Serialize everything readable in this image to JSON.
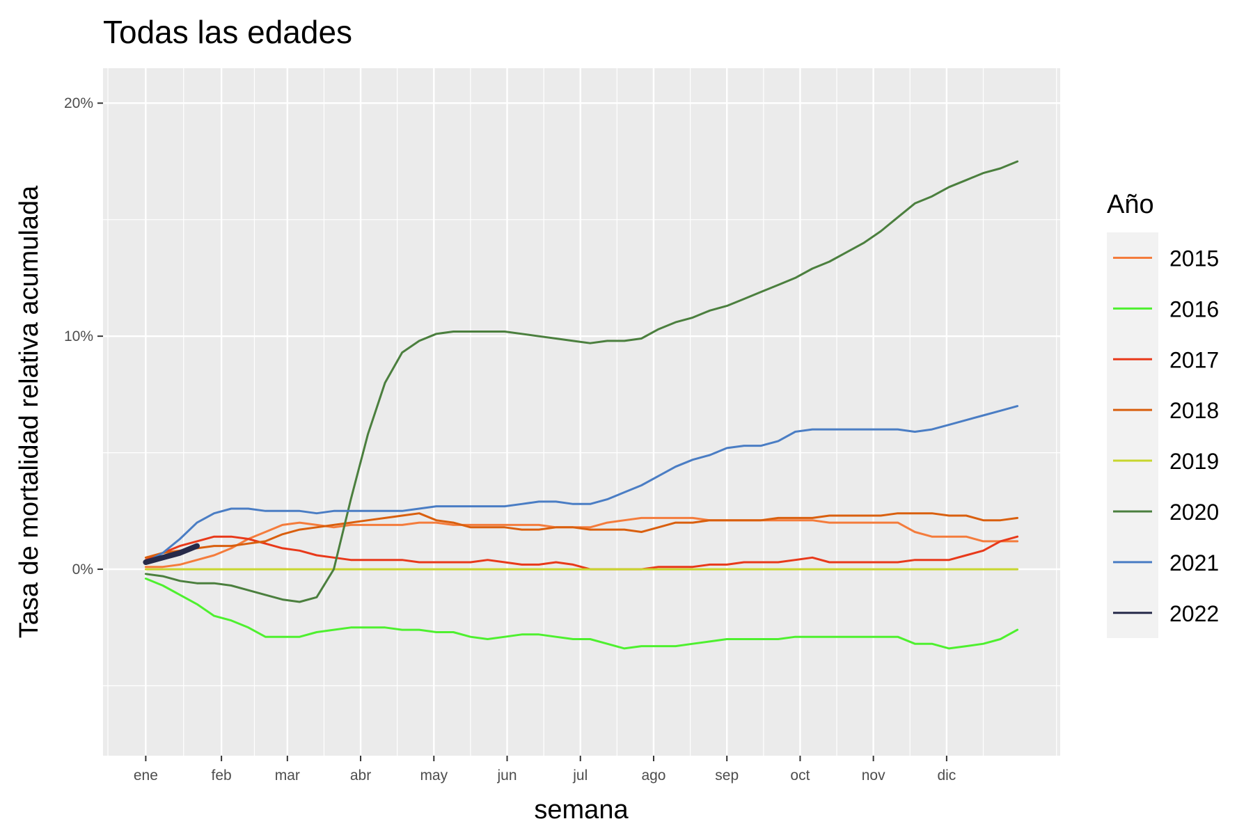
{
  "chart_data": {
    "type": "line",
    "title": "Todas las edades",
    "xlabel": "semana",
    "ylabel": "Tasa de mortalidad relativa acumulada",
    "x_unit": "week",
    "x_tick_labels": [
      "ene",
      "feb",
      "mar",
      "abr",
      "may",
      "jun",
      "jul",
      "ago",
      "sep",
      "oct",
      "nov",
      "dic"
    ],
    "x_tick_weeks": [
      1,
      5.429,
      9.286,
      13.571,
      17.857,
      22.143,
      26.429,
      30.714,
      35,
      39.286,
      43.571,
      47.857
    ],
    "xlim": [
      -1.5,
      54.5
    ],
    "ylim": [
      -0.08,
      0.215
    ],
    "y_ticks": [
      0,
      0.1,
      0.2
    ],
    "y_tick_labels": [
      "0%",
      "10%",
      "20%"
    ],
    "grid": true,
    "legend_title": "Año",
    "legend_position": "right",
    "series": [
      {
        "name": "2015",
        "color": "#f47c3c",
        "width": 3,
        "x": [
          1,
          2,
          3,
          4,
          5,
          6,
          7,
          8,
          9,
          10,
          11,
          12,
          13,
          14,
          15,
          16,
          17,
          18,
          19,
          20,
          21,
          22,
          23,
          24,
          25,
          26,
          27,
          28,
          29,
          30,
          31,
          32,
          33,
          34,
          35,
          36,
          37,
          38,
          39,
          40,
          41,
          42,
          43,
          44,
          45,
          46,
          47,
          48,
          49,
          50,
          51,
          52
        ],
        "y": [
          0.001,
          0.001,
          0.002,
          0.004,
          0.006,
          0.009,
          0.013,
          0.016,
          0.019,
          0.02,
          0.019,
          0.018,
          0.019,
          0.019,
          0.019,
          0.019,
          0.02,
          0.02,
          0.019,
          0.019,
          0.019,
          0.019,
          0.019,
          0.019,
          0.018,
          0.018,
          0.018,
          0.02,
          0.021,
          0.022,
          0.022,
          0.022,
          0.022,
          0.021,
          0.021,
          0.021,
          0.021,
          0.021,
          0.021,
          0.021,
          0.02,
          0.02,
          0.02,
          0.02,
          0.02,
          0.016,
          0.014,
          0.014,
          0.014,
          0.012,
          0.012,
          0.012
        ]
      },
      {
        "name": "2016",
        "color": "#4ef02f",
        "width": 3,
        "x": [
          1,
          2,
          3,
          4,
          5,
          6,
          7,
          8,
          9,
          10,
          11,
          12,
          13,
          14,
          15,
          16,
          17,
          18,
          19,
          20,
          21,
          22,
          23,
          24,
          25,
          26,
          27,
          28,
          29,
          30,
          31,
          32,
          33,
          34,
          35,
          36,
          37,
          38,
          39,
          40,
          41,
          42,
          43,
          44,
          45,
          46,
          47,
          48,
          49,
          50,
          51,
          52
        ],
        "y": [
          -0.004,
          -0.007,
          -0.011,
          -0.015,
          -0.02,
          -0.022,
          -0.025,
          -0.029,
          -0.029,
          -0.029,
          -0.027,
          -0.026,
          -0.025,
          -0.025,
          -0.025,
          -0.026,
          -0.026,
          -0.027,
          -0.027,
          -0.029,
          -0.03,
          -0.029,
          -0.028,
          -0.028,
          -0.029,
          -0.03,
          -0.03,
          -0.032,
          -0.034,
          -0.033,
          -0.033,
          -0.033,
          -0.032,
          -0.031,
          -0.03,
          -0.03,
          -0.03,
          -0.03,
          -0.029,
          -0.029,
          -0.029,
          -0.029,
          -0.029,
          -0.029,
          -0.029,
          -0.032,
          -0.032,
          -0.034,
          -0.033,
          -0.032,
          -0.03,
          -0.026
        ]
      },
      {
        "name": "2017",
        "color": "#e8391a",
        "width": 3,
        "x": [
          1,
          2,
          3,
          4,
          5,
          6,
          7,
          8,
          9,
          10,
          11,
          12,
          13,
          14,
          15,
          16,
          17,
          18,
          19,
          20,
          21,
          22,
          23,
          24,
          25,
          26,
          27,
          28,
          29,
          30,
          31,
          32,
          33,
          34,
          35,
          36,
          37,
          38,
          39,
          40,
          41,
          42,
          43,
          44,
          45,
          46,
          47,
          48,
          49,
          50,
          51,
          52
        ],
        "y": [
          0.004,
          0.007,
          0.01,
          0.012,
          0.014,
          0.014,
          0.013,
          0.011,
          0.009,
          0.008,
          0.006,
          0.005,
          0.004,
          0.004,
          0.004,
          0.004,
          0.003,
          0.003,
          0.003,
          0.003,
          0.004,
          0.003,
          0.002,
          0.002,
          0.003,
          0.002,
          0.0,
          0.0,
          0.0,
          0.0,
          0.001,
          0.001,
          0.001,
          0.002,
          0.002,
          0.003,
          0.003,
          0.003,
          0.004,
          0.005,
          0.003,
          0.003,
          0.003,
          0.003,
          0.003,
          0.004,
          0.004,
          0.004,
          0.006,
          0.008,
          0.012,
          0.014
        ]
      },
      {
        "name": "2018",
        "color": "#d95f0e",
        "width": 3,
        "x": [
          1,
          2,
          3,
          4,
          5,
          6,
          7,
          8,
          9,
          10,
          11,
          12,
          13,
          14,
          15,
          16,
          17,
          18,
          19,
          20,
          21,
          22,
          23,
          24,
          25,
          26,
          27,
          28,
          29,
          30,
          31,
          32,
          33,
          34,
          35,
          36,
          37,
          38,
          39,
          40,
          41,
          42,
          43,
          44,
          45,
          46,
          47,
          48,
          49,
          50,
          51,
          52
        ],
        "y": [
          0.005,
          0.007,
          0.008,
          0.009,
          0.01,
          0.01,
          0.011,
          0.012,
          0.015,
          0.017,
          0.018,
          0.019,
          0.02,
          0.021,
          0.022,
          0.023,
          0.024,
          0.021,
          0.02,
          0.018,
          0.018,
          0.018,
          0.017,
          0.017,
          0.018,
          0.018,
          0.017,
          0.017,
          0.017,
          0.016,
          0.018,
          0.02,
          0.02,
          0.021,
          0.021,
          0.021,
          0.021,
          0.022,
          0.022,
          0.022,
          0.023,
          0.023,
          0.023,
          0.023,
          0.024,
          0.024,
          0.024,
          0.023,
          0.023,
          0.021,
          0.021,
          0.022
        ]
      },
      {
        "name": "2019",
        "color": "#c8d62e",
        "width": 3,
        "x": [
          1,
          52
        ],
        "y": [
          0,
          0
        ]
      },
      {
        "name": "2020",
        "color": "#4b7f3e",
        "width": 3,
        "x": [
          1,
          2,
          3,
          4,
          5,
          6,
          7,
          8,
          9,
          10,
          11,
          12,
          13,
          14,
          15,
          16,
          17,
          18,
          19,
          20,
          21,
          22,
          23,
          24,
          25,
          26,
          27,
          28,
          29,
          30,
          31,
          32,
          33,
          34,
          35,
          36,
          37,
          38,
          39,
          40,
          41,
          42,
          43,
          44,
          45,
          46,
          47,
          48,
          49,
          50,
          51,
          52
        ],
        "y": [
          -0.002,
          -0.003,
          -0.005,
          -0.006,
          -0.006,
          -0.007,
          -0.009,
          -0.011,
          -0.013,
          -0.014,
          -0.012,
          0.0,
          0.03,
          0.058,
          0.08,
          0.093,
          0.098,
          0.101,
          0.102,
          0.102,
          0.102,
          0.102,
          0.101,
          0.1,
          0.099,
          0.098,
          0.097,
          0.098,
          0.098,
          0.099,
          0.103,
          0.106,
          0.108,
          0.111,
          0.113,
          0.116,
          0.119,
          0.122,
          0.125,
          0.129,
          0.132,
          0.136,
          0.14,
          0.145,
          0.151,
          0.157,
          0.16,
          0.164,
          0.167,
          0.17,
          0.172,
          0.175
        ]
      },
      {
        "name": "2021",
        "color": "#4a7dc4",
        "width": 3,
        "x": [
          1,
          2,
          3,
          4,
          5,
          6,
          7,
          8,
          9,
          10,
          11,
          12,
          13,
          14,
          15,
          16,
          17,
          18,
          19,
          20,
          21,
          22,
          23,
          24,
          25,
          26,
          27,
          28,
          29,
          30,
          31,
          32,
          33,
          34,
          35,
          36,
          37,
          38,
          39,
          40,
          41,
          42,
          43,
          44,
          45,
          46,
          47,
          48,
          49,
          50,
          51,
          52
        ],
        "y": [
          0.003,
          0.007,
          0.013,
          0.02,
          0.024,
          0.026,
          0.026,
          0.025,
          0.025,
          0.025,
          0.024,
          0.025,
          0.025,
          0.025,
          0.025,
          0.025,
          0.026,
          0.027,
          0.027,
          0.027,
          0.027,
          0.027,
          0.028,
          0.029,
          0.029,
          0.028,
          0.028,
          0.03,
          0.033,
          0.036,
          0.04,
          0.044,
          0.047,
          0.049,
          0.052,
          0.053,
          0.053,
          0.055,
          0.059,
          0.06,
          0.06,
          0.06,
          0.06,
          0.06,
          0.06,
          0.059,
          0.06,
          0.062,
          0.064,
          0.066,
          0.068,
          0.07
        ]
      },
      {
        "name": "2022",
        "color": "#262a4a",
        "width": 8,
        "x": [
          1,
          2,
          3,
          4
        ],
        "y": [
          0.003,
          0.005,
          0.007,
          0.01
        ]
      }
    ]
  }
}
